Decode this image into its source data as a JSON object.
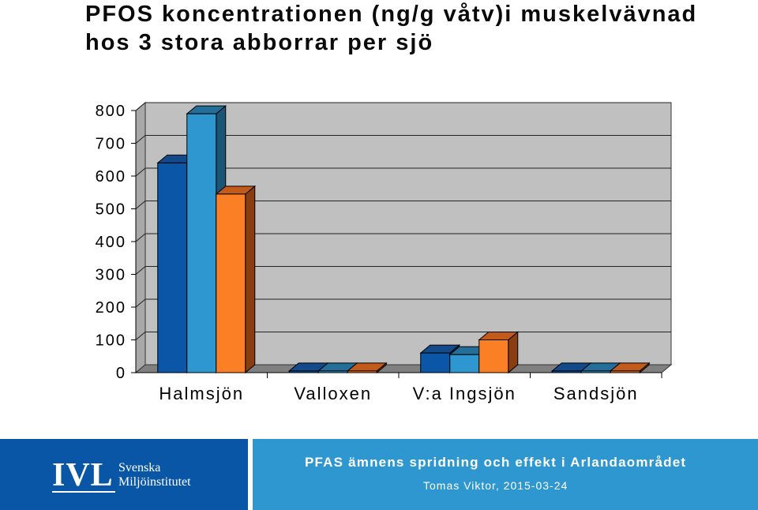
{
  "chart_data": {
    "type": "bar",
    "title": "PFOS koncentrationen (ng/g våtv)i muskelvävnad hos 3 stora abborrar per sjö",
    "categories": [
      "Halmsjön",
      "Valloxen",
      "V:a Ingsjön",
      "Sandsjön"
    ],
    "series": [
      {
        "values": [
          640,
          5,
          60,
          5
        ]
      },
      {
        "values": [
          790,
          5,
          55,
          5
        ]
      },
      {
        "values": [
          545,
          5,
          100,
          5
        ]
      }
    ],
    "y_ticks": [
      "0",
      "100",
      "200",
      "300",
      "400",
      "500",
      "600",
      "700",
      "800"
    ],
    "ylim": [
      0,
      800
    ],
    "grid": true,
    "style": "3d",
    "colors": [
      "#0b56a6",
      "#2f97d0",
      "#fb7f25"
    ],
    "side_colors": [
      "#0a2f63",
      "#1b5576",
      "#8a3d10"
    ],
    "top_colors": [
      "#134a8a",
      "#236f9a",
      "#c25a1b"
    ]
  },
  "footer": {
    "logo_mark": "IVL",
    "logo_line1": "Svenska",
    "logo_line2": "Miljöinstitutet",
    "title": "PFAS ämnens spridning och effekt i Arlandaområdet",
    "subtitle": "Tomas Viktor, 2015-03-24"
  }
}
